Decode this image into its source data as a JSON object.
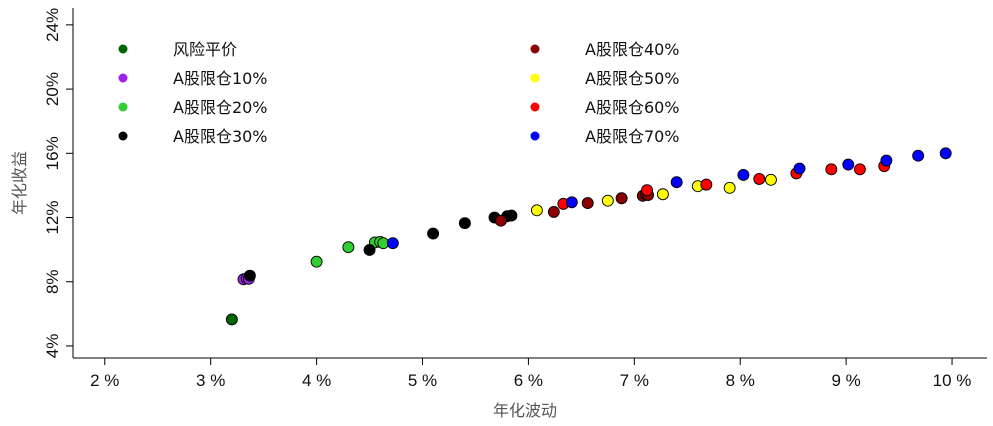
{
  "chart_data": {
    "type": "scatter",
    "xlabel": "年化波动",
    "ylabel": "年化收益",
    "xlim": [
      0.017,
      0.1033
    ],
    "ylim": [
      0.0325,
      0.2505
    ],
    "x_ticks": [
      0.02,
      0.03,
      0.04,
      0.05,
      0.06,
      0.07,
      0.08,
      0.09,
      0.1
    ],
    "x_tick_labels": [
      "2 %",
      "3 %",
      "4 %",
      "5 %",
      "6 %",
      "7 %",
      "8 %",
      "9 %",
      "10 %"
    ],
    "y_ticks": [
      0.04,
      0.08,
      0.12,
      0.16,
      0.2,
      0.24
    ],
    "y_tick_labels": [
      "4%",
      "8%",
      "12%",
      "16%",
      "20%",
      "24%"
    ],
    "grid": false,
    "legend_position": "top",
    "series": [
      {
        "name": "风险平价",
        "color": "#006400",
        "x": [
          0.032
        ],
        "y": [
          0.0565
        ]
      },
      {
        "name": "A股限仓10%",
        "color": "#A020F0",
        "x": [
          0.0331,
          0.0334,
          0.0336
        ],
        "y": [
          0.0815,
          0.082,
          0.0818
        ]
      },
      {
        "name": "A股限仓20%",
        "color": "#32CD32",
        "x": [
          0.04,
          0.043,
          0.0455,
          0.046,
          0.0463
        ],
        "y": [
          0.0925,
          0.1015,
          0.1045,
          0.1048,
          0.104
        ]
      },
      {
        "name": "A股限仓30%",
        "color": "#000000",
        "x": [
          0.0337,
          0.045,
          0.051,
          0.054,
          0.0568,
          0.058,
          0.0584
        ],
        "y": [
          0.0838,
          0.0998,
          0.11,
          0.1165,
          0.12,
          0.1208,
          0.1212
        ]
      },
      {
        "name": "A股限仓40%",
        "color": "#8B0000",
        "x": [
          0.0574,
          0.0624,
          0.0656,
          0.0688,
          0.0708,
          0.0711,
          0.0713
        ],
        "y": [
          0.118,
          0.1235,
          0.129,
          0.132,
          0.1335,
          0.1345,
          0.134
        ]
      },
      {
        "name": "A股限仓50%",
        "color": "#FFFF00",
        "x": [
          0.0608,
          0.0675,
          0.0727,
          0.076,
          0.079,
          0.0829
        ],
        "y": [
          0.1245,
          0.1305,
          0.1345,
          0.1395,
          0.1385,
          0.1435
        ]
      },
      {
        "name": "A股限仓60%",
        "color": "#FF0000",
        "x": [
          0.0633,
          0.0712,
          0.0768,
          0.0818,
          0.0853,
          0.0886,
          0.0913,
          0.0936
        ],
        "y": [
          0.1285,
          0.137,
          0.1405,
          0.144,
          0.1475,
          0.15,
          0.15,
          0.152
        ]
      },
      {
        "name": "A股限仓70%",
        "color": "#0000FF",
        "x": [
          0.0472,
          0.0641,
          0.074,
          0.0803,
          0.0856,
          0.0902,
          0.0938,
          0.0968,
          0.0994
        ],
        "y": [
          0.104,
          0.1295,
          0.142,
          0.1465,
          0.1505,
          0.153,
          0.1555,
          0.1585,
          0.16
        ]
      }
    ]
  }
}
